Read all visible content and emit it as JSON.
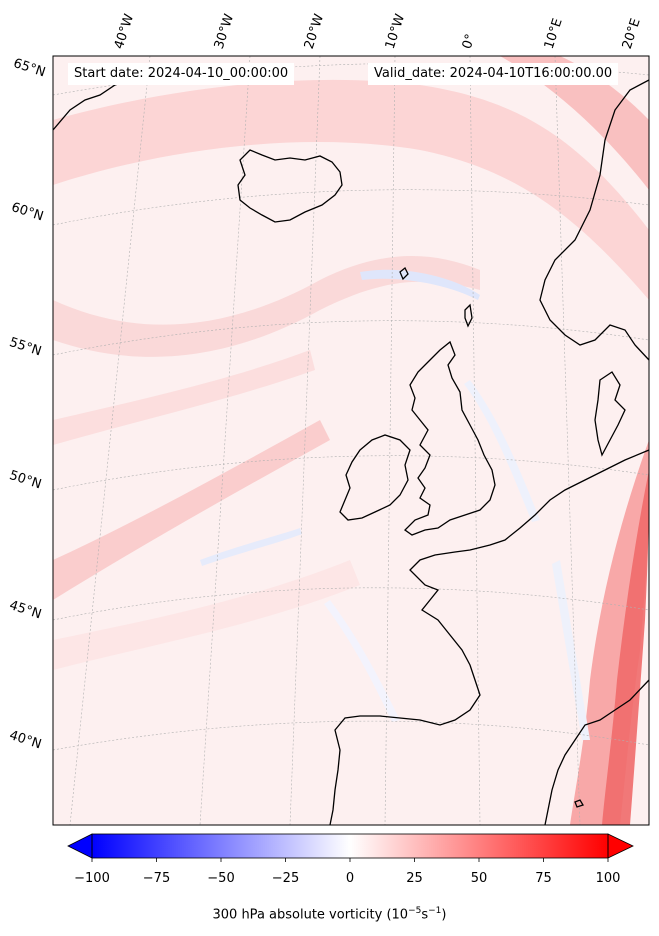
{
  "header": {
    "start_date": "Start date: 2024-04-10_00:00:00",
    "valid_date": "Valid_date: 2024-04-10T16:00:00.00"
  },
  "longitude_labels": [
    "40°W",
    "30°W",
    "20°W",
    "10°W",
    "0°",
    "10°E",
    "20°E"
  ],
  "latitude_labels": [
    "65°N",
    "60°N",
    "55°N",
    "50°N",
    "45°N",
    "40°N"
  ],
  "colorbar": {
    "ticks": [
      "−100",
      "−75",
      "−50",
      "−25",
      "0",
      "25",
      "50",
      "75",
      "100"
    ],
    "title_prefix": "300 hPa absolute vorticity (10",
    "sup1": "−5",
    "mid": "s",
    "sup2": "−1",
    "suffix": ")",
    "min": -100,
    "max": 100,
    "negative_color": "#0000ff",
    "zero_color": "#ffffff",
    "positive_color": "#ff0000",
    "extend": "both"
  },
  "map": {
    "variable": "300 hPa absolute vorticity",
    "background_color": "#fdf1f1",
    "coastline_color": "#000000"
  }
}
